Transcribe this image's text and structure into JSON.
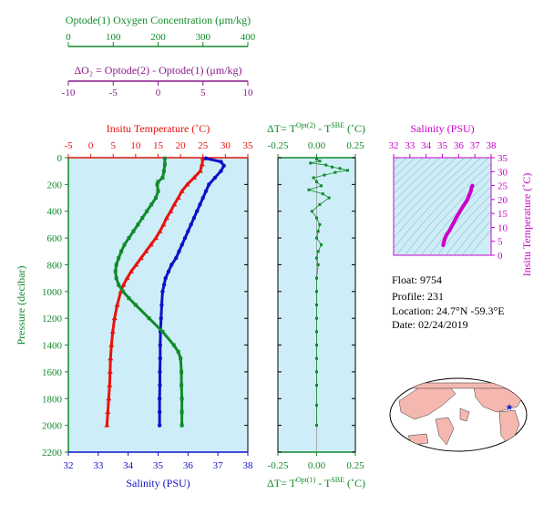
{
  "colors": {
    "oxygen": "#118a2a",
    "dO2": "#8a1a8a",
    "temperature": "#e8120c",
    "salinity": "#1010c8",
    "pressure": "#118a2a",
    "dT": "#118a2a",
    "ts": "#cc00cc",
    "plot_bg": "#cdeef8",
    "globe_land": "#f4b8b0",
    "globe_ocean": "#ffffff"
  },
  "info": {
    "float": "Float:  9754",
    "profile": "Profile:  231",
    "location": "Location:  24.7°N  -59.3°E",
    "date": "Date:  02/24/2019",
    "marker_icon": "star-icon"
  },
  "chart_data": [
    {
      "type": "line",
      "id": "main",
      "ylabel": "Pressure (decibar)",
      "ylim": [
        2200,
        0
      ],
      "yticks": [
        0,
        200,
        400,
        600,
        800,
        1000,
        1200,
        1400,
        1600,
        1800,
        2000,
        2200
      ],
      "axes": {
        "oxygen": {
          "title": "Optode(1) Oxygen Concentration (μm/kg)",
          "range": [
            0,
            400
          ],
          "ticks": [
            0,
            100,
            200,
            300,
            400
          ]
        },
        "dO2": {
          "title": "ΔO₂ = Optode(2) - Optode(1)   (μm/kg)",
          "range": [
            -10,
            10
          ],
          "ticks": [
            -10,
            -5,
            0,
            5,
            10
          ]
        },
        "temperature": {
          "title": "Insitu Temperature (˚C)",
          "range": [
            -5,
            35
          ],
          "ticks": [
            -5,
            0,
            5,
            10,
            15,
            20,
            25,
            30,
            35
          ]
        },
        "salinity": {
          "title": "Salinity (PSU)",
          "range": [
            32,
            38
          ],
          "ticks": [
            32,
            33,
            34,
            35,
            36,
            37,
            38
          ]
        }
      },
      "series": [
        {
          "key": "temperature",
          "pressure": [
            5,
            50,
            100,
            150,
            200,
            250,
            300,
            350,
            400,
            450,
            500,
            550,
            600,
            650,
            700,
            750,
            800,
            850,
            900,
            950,
            1000,
            1100,
            1200,
            1300,
            1400,
            1500,
            1600,
            1700,
            1800,
            1900,
            2000
          ],
          "values": [
            25,
            24.8,
            24.4,
            23,
            21.5,
            20.3,
            19.5,
            18.6,
            17.8,
            16.9,
            16.2,
            15.4,
            14.5,
            13.4,
            12.3,
            11.2,
            10.1,
            9.0,
            8.1,
            7.3,
            6.7,
            5.9,
            5.3,
            4.9,
            4.6,
            4.4,
            4.3,
            4.2,
            4.0,
            3.8,
            3.6
          ]
        },
        {
          "key": "salinity",
          "pressure": [
            5,
            30,
            60,
            100,
            150,
            200,
            250,
            300,
            350,
            400,
            450,
            500,
            550,
            600,
            650,
            700,
            750,
            800,
            850,
            900,
            950,
            1000,
            1100,
            1200,
            1300,
            1400,
            1500,
            1600,
            1700,
            1800,
            1900,
            2000
          ],
          "values": [
            36.6,
            37.1,
            37.2,
            37.1,
            36.9,
            36.7,
            36.6,
            36.5,
            36.4,
            36.3,
            36.2,
            36.1,
            36.0,
            35.9,
            35.8,
            35.7,
            35.6,
            35.45,
            35.35,
            35.25,
            35.2,
            35.15,
            35.12,
            35.1,
            35.08,
            35.07,
            35.07,
            35.06,
            35.06,
            35.05,
            35.05,
            35.05
          ]
        },
        {
          "key": "oxygen",
          "pressure": [
            5,
            50,
            100,
            150,
            180,
            200,
            250,
            300,
            350,
            400,
            450,
            500,
            550,
            600,
            650,
            700,
            750,
            800,
            850,
            900,
            950,
            1000,
            1050,
            1100,
            1200,
            1300,
            1400,
            1450,
            1500,
            1600,
            1700,
            1800,
            1900,
            2000
          ],
          "values": [
            215,
            215,
            213,
            210,
            200,
            198,
            200,
            195,
            185,
            175,
            165,
            155,
            145,
            135,
            125,
            118,
            112,
            107,
            105,
            107,
            112,
            122,
            135,
            150,
            180,
            210,
            235,
            245,
            250,
            252,
            252,
            253,
            253,
            253
          ]
        }
      ]
    },
    {
      "type": "scatter",
      "id": "dT",
      "title_top": "ΔT= T^Opt(2) - T^SBE (˚C)",
      "title_bottom": "ΔT= T^Opt(1) - T^SBE (˚C)",
      "xlim": [
        -0.25,
        0.25
      ],
      "xticks": [
        -0.25,
        0,
        0.25
      ],
      "ylim": [
        2200,
        0
      ],
      "x": [
        0.0,
        0.02,
        -0.04,
        0.06,
        0.1,
        0.15,
        0.2,
        0.12,
        0.05,
        -0.02,
        0.0,
        0.03,
        -0.05,
        0.04,
        0.08,
        0.02,
        -0.03,
        0.0,
        0.02,
        0.01,
        0.0,
        0.03,
        0.01,
        0.0,
        0.01,
        0.0,
        0.0,
        0.0,
        0.0,
        0.0,
        0.0,
        0.0,
        0.0,
        0.0,
        0.0,
        0.0
      ],
      "y": [
        10,
        25,
        40,
        55,
        70,
        80,
        95,
        110,
        130,
        150,
        180,
        210,
        240,
        270,
        300,
        350,
        400,
        450,
        500,
        550,
        600,
        650,
        700,
        750,
        800,
        900,
        1000,
        1100,
        1200,
        1300,
        1400,
        1500,
        1600,
        1700,
        1850,
        2000
      ]
    },
    {
      "type": "line",
      "id": "ts",
      "title": "Salinity (PSU)",
      "ylabel": "Insitu Temperature (˚C)",
      "xlim": [
        32,
        38
      ],
      "xticks": [
        32,
        33,
        34,
        35,
        36,
        37,
        38
      ],
      "ylim": [
        0,
        35
      ],
      "yticks": [
        0,
        5,
        10,
        15,
        20,
        25,
        30,
        35
      ],
      "x": [
        35.05,
        35.07,
        35.1,
        35.15,
        35.25,
        35.45,
        35.65,
        35.85,
        36.05,
        36.3,
        36.5,
        36.65,
        36.75,
        36.8,
        36.85
      ],
      "y": [
        3.6,
        4.2,
        4.9,
        5.9,
        7.3,
        9.0,
        11.2,
        13.4,
        15.4,
        17.8,
        19.5,
        21.5,
        23.0,
        24.4,
        25.0
      ]
    }
  ]
}
